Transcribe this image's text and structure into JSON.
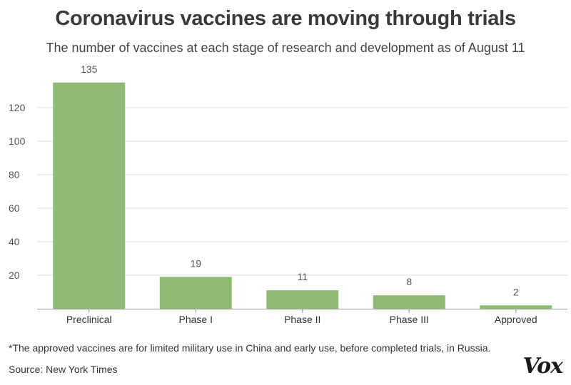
{
  "header": {
    "title": "Coronavirus vaccines are moving through trials",
    "subtitle": "The number of vaccines at each stage of research and development as of August 11"
  },
  "footer": {
    "footnote": "*The approved vaccines are for limited military use in China and early use, before completed trials, in Russia.",
    "source": "Source: New York Times",
    "logo_text": "Vox"
  },
  "colors": {
    "bar": "#8fba73",
    "grid": "#dddddd",
    "axis": "#999999"
  },
  "chart_data": {
    "type": "bar",
    "title": "Coronavirus vaccines are moving through trials",
    "subtitle": "The number of vaccines at each stage of research and development as of August 11",
    "categories": [
      "Preclinical",
      "Phase I",
      "Phase II",
      "Phase III",
      "Approved"
    ],
    "values": [
      135,
      19,
      11,
      8,
      2
    ],
    "data_labels": [
      "135",
      "19",
      "11",
      "8",
      "2"
    ],
    "ylim": [
      0,
      135
    ],
    "yticks": [
      20,
      40,
      60,
      80,
      100,
      120
    ],
    "grid": true,
    "xlabel": "",
    "ylabel": ""
  }
}
